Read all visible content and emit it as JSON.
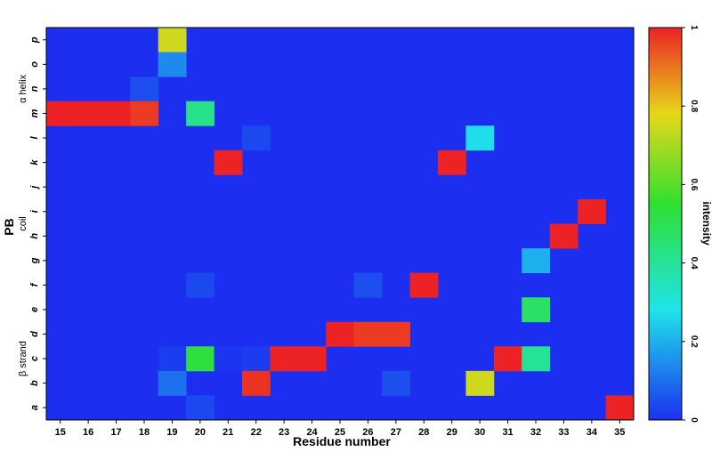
{
  "chart_data": {
    "type": "heatmap",
    "xlabel": "Residue number",
    "ylabel": "PB",
    "x": [
      15,
      16,
      17,
      18,
      19,
      20,
      21,
      22,
      23,
      24,
      25,
      26,
      27,
      28,
      29,
      30,
      31,
      32,
      33,
      34,
      35
    ],
    "rows": [
      "p",
      "o",
      "n",
      "m",
      "l",
      "k",
      "j",
      "i",
      "h",
      "g",
      "f",
      "e",
      "d",
      "c",
      "b",
      "a"
    ],
    "row_groups": [
      {
        "label": "α helix",
        "rows": [
          "l",
          "m",
          "n",
          "o",
          "p"
        ]
      },
      {
        "label": "coil",
        "rows": [
          "f",
          "g",
          "h",
          "i",
          "j",
          "k"
        ]
      },
      {
        "label": "β strand",
        "rows": [
          "a",
          "b",
          "c",
          "d",
          "e"
        ]
      }
    ],
    "cells": [
      {
        "row": "p",
        "x": 19,
        "value": 0.75
      },
      {
        "row": "o",
        "x": 19,
        "value": 0.14
      },
      {
        "row": "n",
        "x": 18,
        "value": 0.05
      },
      {
        "row": "m",
        "x": 15,
        "value": 1.0
      },
      {
        "row": "m",
        "x": 16,
        "value": 1.0
      },
      {
        "row": "m",
        "x": 17,
        "value": 1.0
      },
      {
        "row": "m",
        "x": 18,
        "value": 0.97
      },
      {
        "row": "m",
        "x": 20,
        "value": 0.42
      },
      {
        "row": "l",
        "x": 22,
        "value": 0.04
      },
      {
        "row": "l",
        "x": 30,
        "value": 0.27
      },
      {
        "row": "k",
        "x": 21,
        "value": 1.0
      },
      {
        "row": "k",
        "x": 29,
        "value": 1.0
      },
      {
        "row": "i",
        "x": 34,
        "value": 1.0
      },
      {
        "row": "h",
        "x": 33,
        "value": 1.0
      },
      {
        "row": "g",
        "x": 32,
        "value": 0.2
      },
      {
        "row": "f",
        "x": 20,
        "value": 0.04
      },
      {
        "row": "f",
        "x": 26,
        "value": 0.05
      },
      {
        "row": "f",
        "x": 28,
        "value": 1.0
      },
      {
        "row": "e",
        "x": 32,
        "value": 0.47
      },
      {
        "row": "d",
        "x": 25,
        "value": 1.0
      },
      {
        "row": "d",
        "x": 26,
        "value": 0.97
      },
      {
        "row": "d",
        "x": 27,
        "value": 0.97
      },
      {
        "row": "c",
        "x": 19,
        "value": 0.02
      },
      {
        "row": "c",
        "x": 20,
        "value": 0.53
      },
      {
        "row": "c",
        "x": 21,
        "value": 0.01
      },
      {
        "row": "c",
        "x": 22,
        "value": 0.02
      },
      {
        "row": "c",
        "x": 23,
        "value": 1.0
      },
      {
        "row": "c",
        "x": 24,
        "value": 1.0
      },
      {
        "row": "c",
        "x": 31,
        "value": 1.0
      },
      {
        "row": "c",
        "x": 32,
        "value": 0.4
      },
      {
        "row": "b",
        "x": 19,
        "value": 0.1
      },
      {
        "row": "b",
        "x": 22,
        "value": 0.98
      },
      {
        "row": "b",
        "x": 27,
        "value": 0.05
      },
      {
        "row": "b",
        "x": 30,
        "value": 0.75
      },
      {
        "row": "a",
        "x": 20,
        "value": 0.04
      },
      {
        "row": "a",
        "x": 35,
        "value": 1.0
      }
    ],
    "default_value": 0,
    "colorbar": {
      "label": "intensity",
      "range": [
        0,
        1
      ],
      "ticks": [
        "0",
        "0.2",
        "0.4",
        "0.6",
        "0.8",
        "1"
      ],
      "tick_values": [
        0,
        0.2,
        0.4,
        0.6,
        0.8,
        1.0
      ]
    },
    "colors": {
      "low": "#1c2ff0",
      "mid_low": "#1fe4ea",
      "mid": "#2fe02f",
      "mid_high": "#e6d81a",
      "high": "#ec2224"
    }
  }
}
